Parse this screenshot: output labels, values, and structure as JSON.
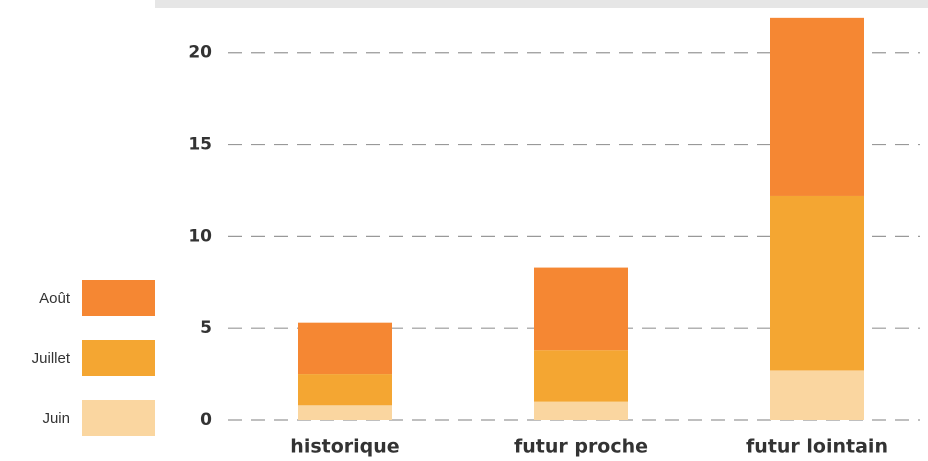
{
  "chart_data": {
    "type": "stacked_bar",
    "categories": [
      "historique",
      "futur proche",
      "futur lointain"
    ],
    "series": [
      {
        "name": "Juin",
        "color": "#fad6a0",
        "values": [
          0.8,
          1.0,
          2.7
        ]
      },
      {
        "name": "Juillet",
        "color": "#f4a632",
        "values": [
          1.7,
          2.8,
          9.5
        ]
      },
      {
        "name": "Août",
        "color": "#f58733",
        "values": [
          2.8,
          4.5,
          9.7
        ]
      }
    ],
    "ylim": [
      0,
      22
    ],
    "yticks": [
      0,
      5,
      10,
      15,
      20
    ],
    "grid": true,
    "legend": "left"
  }
}
